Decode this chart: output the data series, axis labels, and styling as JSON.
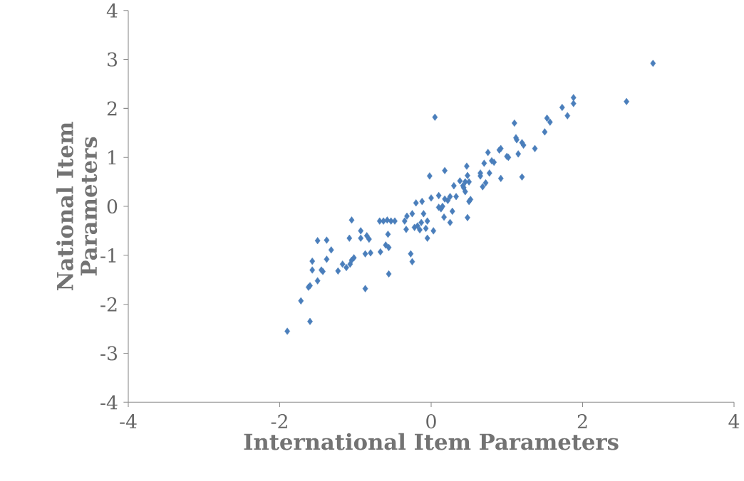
{
  "chart_data": {
    "type": "scatter",
    "xlabel": "International Item Parameters",
    "ylabel": "National Item Parameters",
    "xlim": [
      -4,
      4
    ],
    "ylim": [
      -4,
      4
    ],
    "xticks": [
      -4,
      -2,
      0,
      2,
      4
    ],
    "yticks": [
      -4,
      -3,
      -2,
      -1,
      0,
      1,
      2,
      3,
      4
    ],
    "marker": "diamond",
    "series": [
      {
        "color": "#4a7ebb",
        "x": [
          -1.9,
          -1.6,
          -1.72,
          -1.6,
          -1.62,
          -1.5,
          -1.57,
          -1.57,
          -1.43,
          -1.45,
          -1.38,
          -1.5,
          -1.38,
          -1.32,
          -1.23,
          -1.17,
          -1.12,
          -1.07,
          -1.05,
          -1.02,
          -1.08,
          -1.05,
          -0.93,
          -0.93,
          -0.87,
          -0.87,
          -0.85,
          -0.82,
          -0.8,
          -0.68,
          -0.63,
          -0.58,
          -0.53,
          -0.48,
          -0.67,
          -0.6,
          -0.56,
          -0.57,
          -0.56,
          -0.35,
          -0.32,
          -0.33,
          -0.27,
          -0.25,
          -0.25,
          -0.22,
          -0.2,
          -0.18,
          -0.15,
          -0.13,
          -0.12,
          -0.1,
          -0.07,
          -0.05,
          -0.05,
          0.0,
          -0.02,
          0.03,
          0.05,
          0.1,
          0.1,
          0.13,
          0.15,
          0.17,
          0.18,
          0.18,
          0.22,
          0.25,
          0.25,
          0.28,
          0.3,
          0.33,
          0.38,
          0.42,
          0.43,
          0.45,
          0.45,
          0.47,
          0.48,
          0.48,
          0.5,
          0.52,
          0.5,
          0.65,
          0.65,
          0.68,
          0.7,
          0.72,
          0.75,
          0.77,
          0.8,
          0.83,
          0.9,
          0.92,
          0.92,
          1.0,
          1.02,
          1.1,
          1.12,
          1.13,
          1.15,
          1.2,
          1.22,
          1.2,
          1.37,
          1.5,
          1.53,
          1.57,
          1.73,
          1.8,
          1.88,
          1.88,
          2.58,
          2.93
        ],
        "values": [
          -2.55,
          -2.35,
          -1.93,
          -1.62,
          -1.65,
          -1.52,
          -1.3,
          -1.12,
          -1.33,
          -1.3,
          -1.08,
          -0.7,
          -0.69,
          -0.89,
          -1.32,
          -1.18,
          -1.25,
          -1.18,
          -1.1,
          -1.05,
          -0.65,
          -0.28,
          -0.5,
          -0.65,
          -0.97,
          -1.68,
          -0.6,
          -0.67,
          -0.95,
          -0.3,
          -0.3,
          -0.28,
          -0.3,
          -0.3,
          -0.93,
          -0.79,
          -0.84,
          -0.57,
          -1.38,
          -0.3,
          -0.2,
          -0.47,
          -0.97,
          -1.13,
          -0.15,
          -0.43,
          0.07,
          -0.4,
          -0.48,
          -0.33,
          0.1,
          -0.15,
          -0.45,
          -0.3,
          -0.65,
          0.17,
          0.62,
          -0.5,
          1.82,
          0.22,
          -0.02,
          -0.05,
          0.0,
          -0.22,
          0.73,
          0.15,
          0.12,
          0.2,
          -0.33,
          -0.1,
          0.42,
          0.2,
          0.52,
          0.42,
          0.38,
          0.3,
          0.5,
          0.82,
          0.63,
          -0.23,
          0.1,
          0.14,
          0.5,
          0.68,
          0.62,
          0.4,
          0.88,
          0.48,
          1.1,
          0.68,
          0.93,
          0.9,
          1.15,
          1.18,
          0.57,
          1.02,
          1.0,
          1.7,
          1.4,
          1.36,
          1.07,
          1.3,
          1.25,
          0.6,
          1.18,
          1.52,
          1.8,
          1.72,
          2.02,
          1.85,
          2.1,
          2.22,
          2.14,
          2.92
        ]
      }
    ]
  }
}
